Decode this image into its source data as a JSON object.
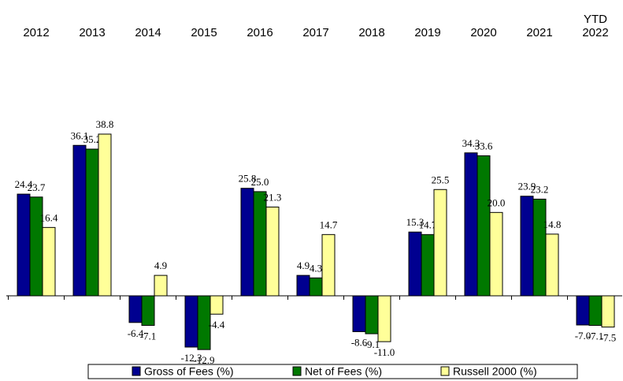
{
  "chart_data": {
    "type": "bar",
    "categories": [
      "2012",
      "2013",
      "2014",
      "2015",
      "2016",
      "2017",
      "2018",
      "2019",
      "2020",
      "2021",
      "YTD\n2022"
    ],
    "series": [
      {
        "name": "Gross of Fees (%)",
        "color": "#000090",
        "values": [
          24.4,
          36.1,
          -6.4,
          -12.3,
          25.8,
          4.9,
          -8.6,
          15.3,
          34.3,
          23.9,
          -7.0
        ],
        "value_labels": [
          "24.4",
          "36.1",
          "-6.4",
          "-12.3",
          "25.8",
          "4.9",
          "-8.6",
          "15.3",
          "34.3",
          "23.9",
          "-7.0"
        ]
      },
      {
        "name": "Net of Fees (%)",
        "color": "#007800",
        "values": [
          23.7,
          35.2,
          -7.1,
          -12.9,
          25.0,
          4.3,
          -9.1,
          14.7,
          33.6,
          23.2,
          -7.1
        ],
        "value_labels": [
          "23.7",
          "35.2",
          "-7.1",
          "-12.9",
          "25.0",
          "4.3",
          "-9.1",
          "14.7",
          "33.6",
          "23.2",
          "-7.1"
        ]
      },
      {
        "name": "Russell 2000 (%)",
        "color": "#ffff99",
        "values": [
          16.4,
          38.8,
          4.9,
          -4.4,
          21.3,
          14.7,
          -11.0,
          25.5,
          20.0,
          14.8,
          -7.5
        ],
        "value_labels": [
          "16.4",
          "38.8",
          "4.9",
          "-4.4",
          "21.3",
          "14.7",
          "-11.0",
          "25.5",
          "20.0",
          "14.8",
          "-7.5"
        ]
      }
    ]
  }
}
